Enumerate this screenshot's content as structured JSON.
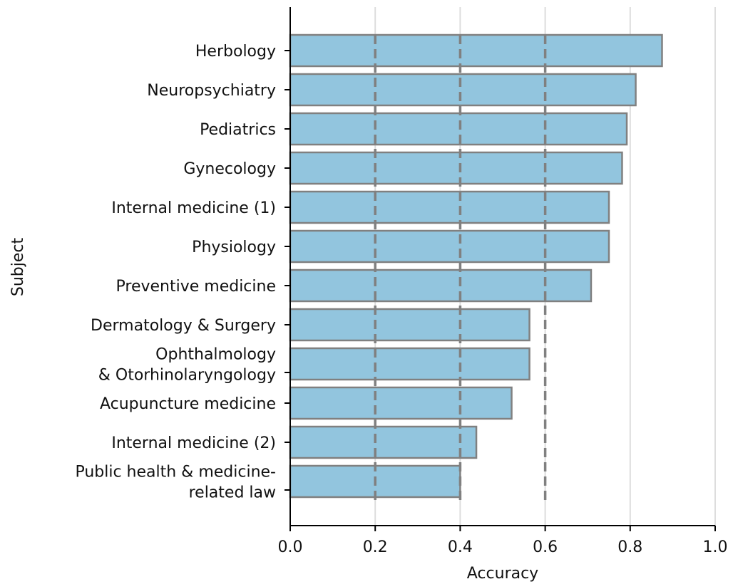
{
  "colors": {
    "bar_fill": "#92c5de",
    "bar_edge": "#808080",
    "grid": "#dddddd",
    "dashed_lines": "#808080",
    "axis": "#000000",
    "text": "#111111"
  },
  "chart_data": {
    "type": "bar",
    "orientation": "horizontal",
    "title": "",
    "xlabel": "Accuracy",
    "ylabel": "Subject",
    "xlim": [
      0,
      1.0
    ],
    "x_ticks": [
      "0.0",
      "0.2",
      "0.4",
      "0.6",
      "0.8",
      "1.0"
    ],
    "x_tick_values": [
      0,
      0.2,
      0.4,
      0.6,
      0.8,
      1.0
    ],
    "grid": "vertical",
    "reference_lines": [
      0.2,
      0.4,
      0.6
    ],
    "reference_line_style": "dashed",
    "categories": [
      "Herbology",
      "Neuropsychiatry",
      "Pediatrics",
      "Gynecology",
      "Internal medicine (1)",
      "Physiology",
      "Preventive medicine",
      "Dermatology & Surgery",
      "Ophthalmology\n& Otorhinolaryngology",
      "Acupuncture medicine",
      "Internal medicine (2)",
      "Public health & medicine-\nrelated law"
    ],
    "values": [
      0.875,
      0.813,
      0.792,
      0.781,
      0.75,
      0.75,
      0.708,
      0.563,
      0.563,
      0.521,
      0.438,
      0.4
    ]
  }
}
